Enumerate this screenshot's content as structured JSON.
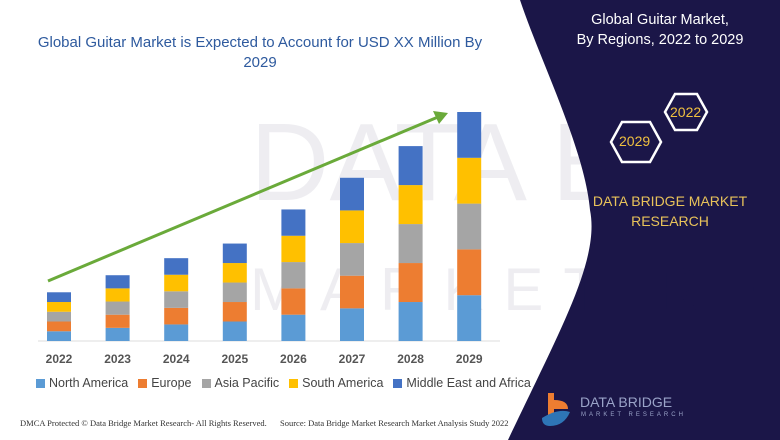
{
  "title": "Global Guitar Market is Expected to Account for USD XX Million By 2029",
  "side_panel": {
    "title_line1": "Global Guitar Market,",
    "title_line2": "By Regions, 2022 to 2029",
    "hex_years": [
      "2022",
      "2029"
    ],
    "brand_line1": "DATA BRIDGE MARKET",
    "brand_line2": "RESEARCH",
    "logo_text": "DATA BRIDGE",
    "logo_sub": "MARKET RESEARCH"
  },
  "footer": {
    "left": "DMCA Protected © Data Bridge Market Research- All Rights Reserved.",
    "right": "Source: Data Bridge Market Research Market Analysis Study 2022"
  },
  "colors": {
    "panel": "#1b1648",
    "arrow": "#6aaa3a",
    "accent": "#e9c35a"
  },
  "chart_data": {
    "type": "bar",
    "stacked": true,
    "categories": [
      "2022",
      "2023",
      "2024",
      "2025",
      "2026",
      "2027",
      "2028",
      "2029"
    ],
    "series": [
      {
        "name": "North America",
        "color": "#5b9bd5",
        "values": [
          1.0,
          1.35,
          1.7,
          2.0,
          2.7,
          3.35,
          4.0,
          4.7
        ]
      },
      {
        "name": "Europe",
        "color": "#ed7d31",
        "values": [
          1.0,
          1.35,
          1.7,
          2.0,
          2.7,
          3.35,
          4.0,
          4.7
        ]
      },
      {
        "name": "Asia Pacific",
        "color": "#a5a5a5",
        "values": [
          1.0,
          1.35,
          1.7,
          2.0,
          2.7,
          3.35,
          4.0,
          4.7
        ]
      },
      {
        "name": "South America",
        "color": "#ffc000",
        "values": [
          1.0,
          1.35,
          1.7,
          2.0,
          2.7,
          3.35,
          4.0,
          4.7
        ]
      },
      {
        "name": "Middle East and Africa",
        "color": "#4472c4",
        "values": [
          1.0,
          1.35,
          1.7,
          2.0,
          2.7,
          3.35,
          4.0,
          4.7
        ]
      }
    ],
    "legend": "bottom",
    "grid": false,
    "trend_arrow": true
  }
}
